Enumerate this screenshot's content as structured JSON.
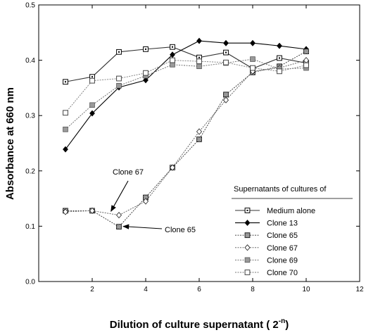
{
  "chart_data": {
    "type": "line",
    "title": "",
    "xlabel": "Dilution of culture supernatant ( 2",
    "xlabel_sup": "-n",
    "xlabel_end": ")",
    "ylabel": "Absorbance at 660 nm",
    "xlim": [
      0,
      12
    ],
    "ylim": [
      0.0,
      0.5
    ],
    "x_ticks": [
      2,
      4,
      6,
      8,
      10,
      12
    ],
    "y_ticks": [
      "0.0",
      "0.1",
      "0.2",
      "0.3",
      "0.4",
      "0.5"
    ],
    "grid": false,
    "legend_title": "Supernatants of cultures of",
    "legend_position": "lower-right",
    "x": [
      1,
      2,
      3,
      4,
      5,
      6,
      7,
      8,
      9,
      10
    ],
    "series": [
      {
        "name": "Medium alone",
        "marker": "square-dot",
        "dash": "solid",
        "color": "#333333",
        "values": [
          0.361,
          0.37,
          0.415,
          0.42,
          0.424,
          0.405,
          0.414,
          0.385,
          0.404,
          0.395
        ]
      },
      {
        "name": "Clone 13",
        "marker": "diamond-filled",
        "dash": "solid",
        "color": "#000000",
        "values": [
          0.239,
          0.304,
          0.351,
          0.364,
          0.41,
          0.435,
          0.431,
          0.431,
          0.426,
          0.42
        ]
      },
      {
        "name": "Clone 65",
        "marker": "square-dark",
        "dash": "dotted",
        "color": "#333333",
        "values": [
          0.128,
          0.128,
          0.099,
          0.152,
          0.206,
          0.257,
          0.338,
          0.378,
          0.389,
          0.416
        ]
      },
      {
        "name": "Clone 67",
        "marker": "diamond-open",
        "dash": "dotted",
        "color": "#555555",
        "values": [
          0.126,
          0.128,
          0.12,
          0.145,
          0.206,
          0.271,
          0.328,
          0.38,
          0.386,
          0.4
        ]
      },
      {
        "name": "Clone 69",
        "marker": "square-gray",
        "dash": "dotted",
        "color": "#666666",
        "values": [
          0.275,
          0.319,
          0.354,
          0.372,
          0.392,
          0.389,
          0.395,
          0.402,
          0.384,
          0.386
        ]
      },
      {
        "name": "Clone 70",
        "marker": "square-open",
        "dash": "dotted",
        "color": "#777777",
        "values": [
          0.305,
          0.363,
          0.367,
          0.377,
          0.4,
          0.398,
          0.396,
          0.386,
          0.38,
          0.391
        ]
      }
    ],
    "annotations": [
      {
        "text": "Clone 67",
        "points_to_x": 2.7,
        "points_to_y": 0.123
      },
      {
        "text": "Clone 65",
        "points_to_x": 3.05,
        "points_to_y": 0.101
      }
    ]
  }
}
